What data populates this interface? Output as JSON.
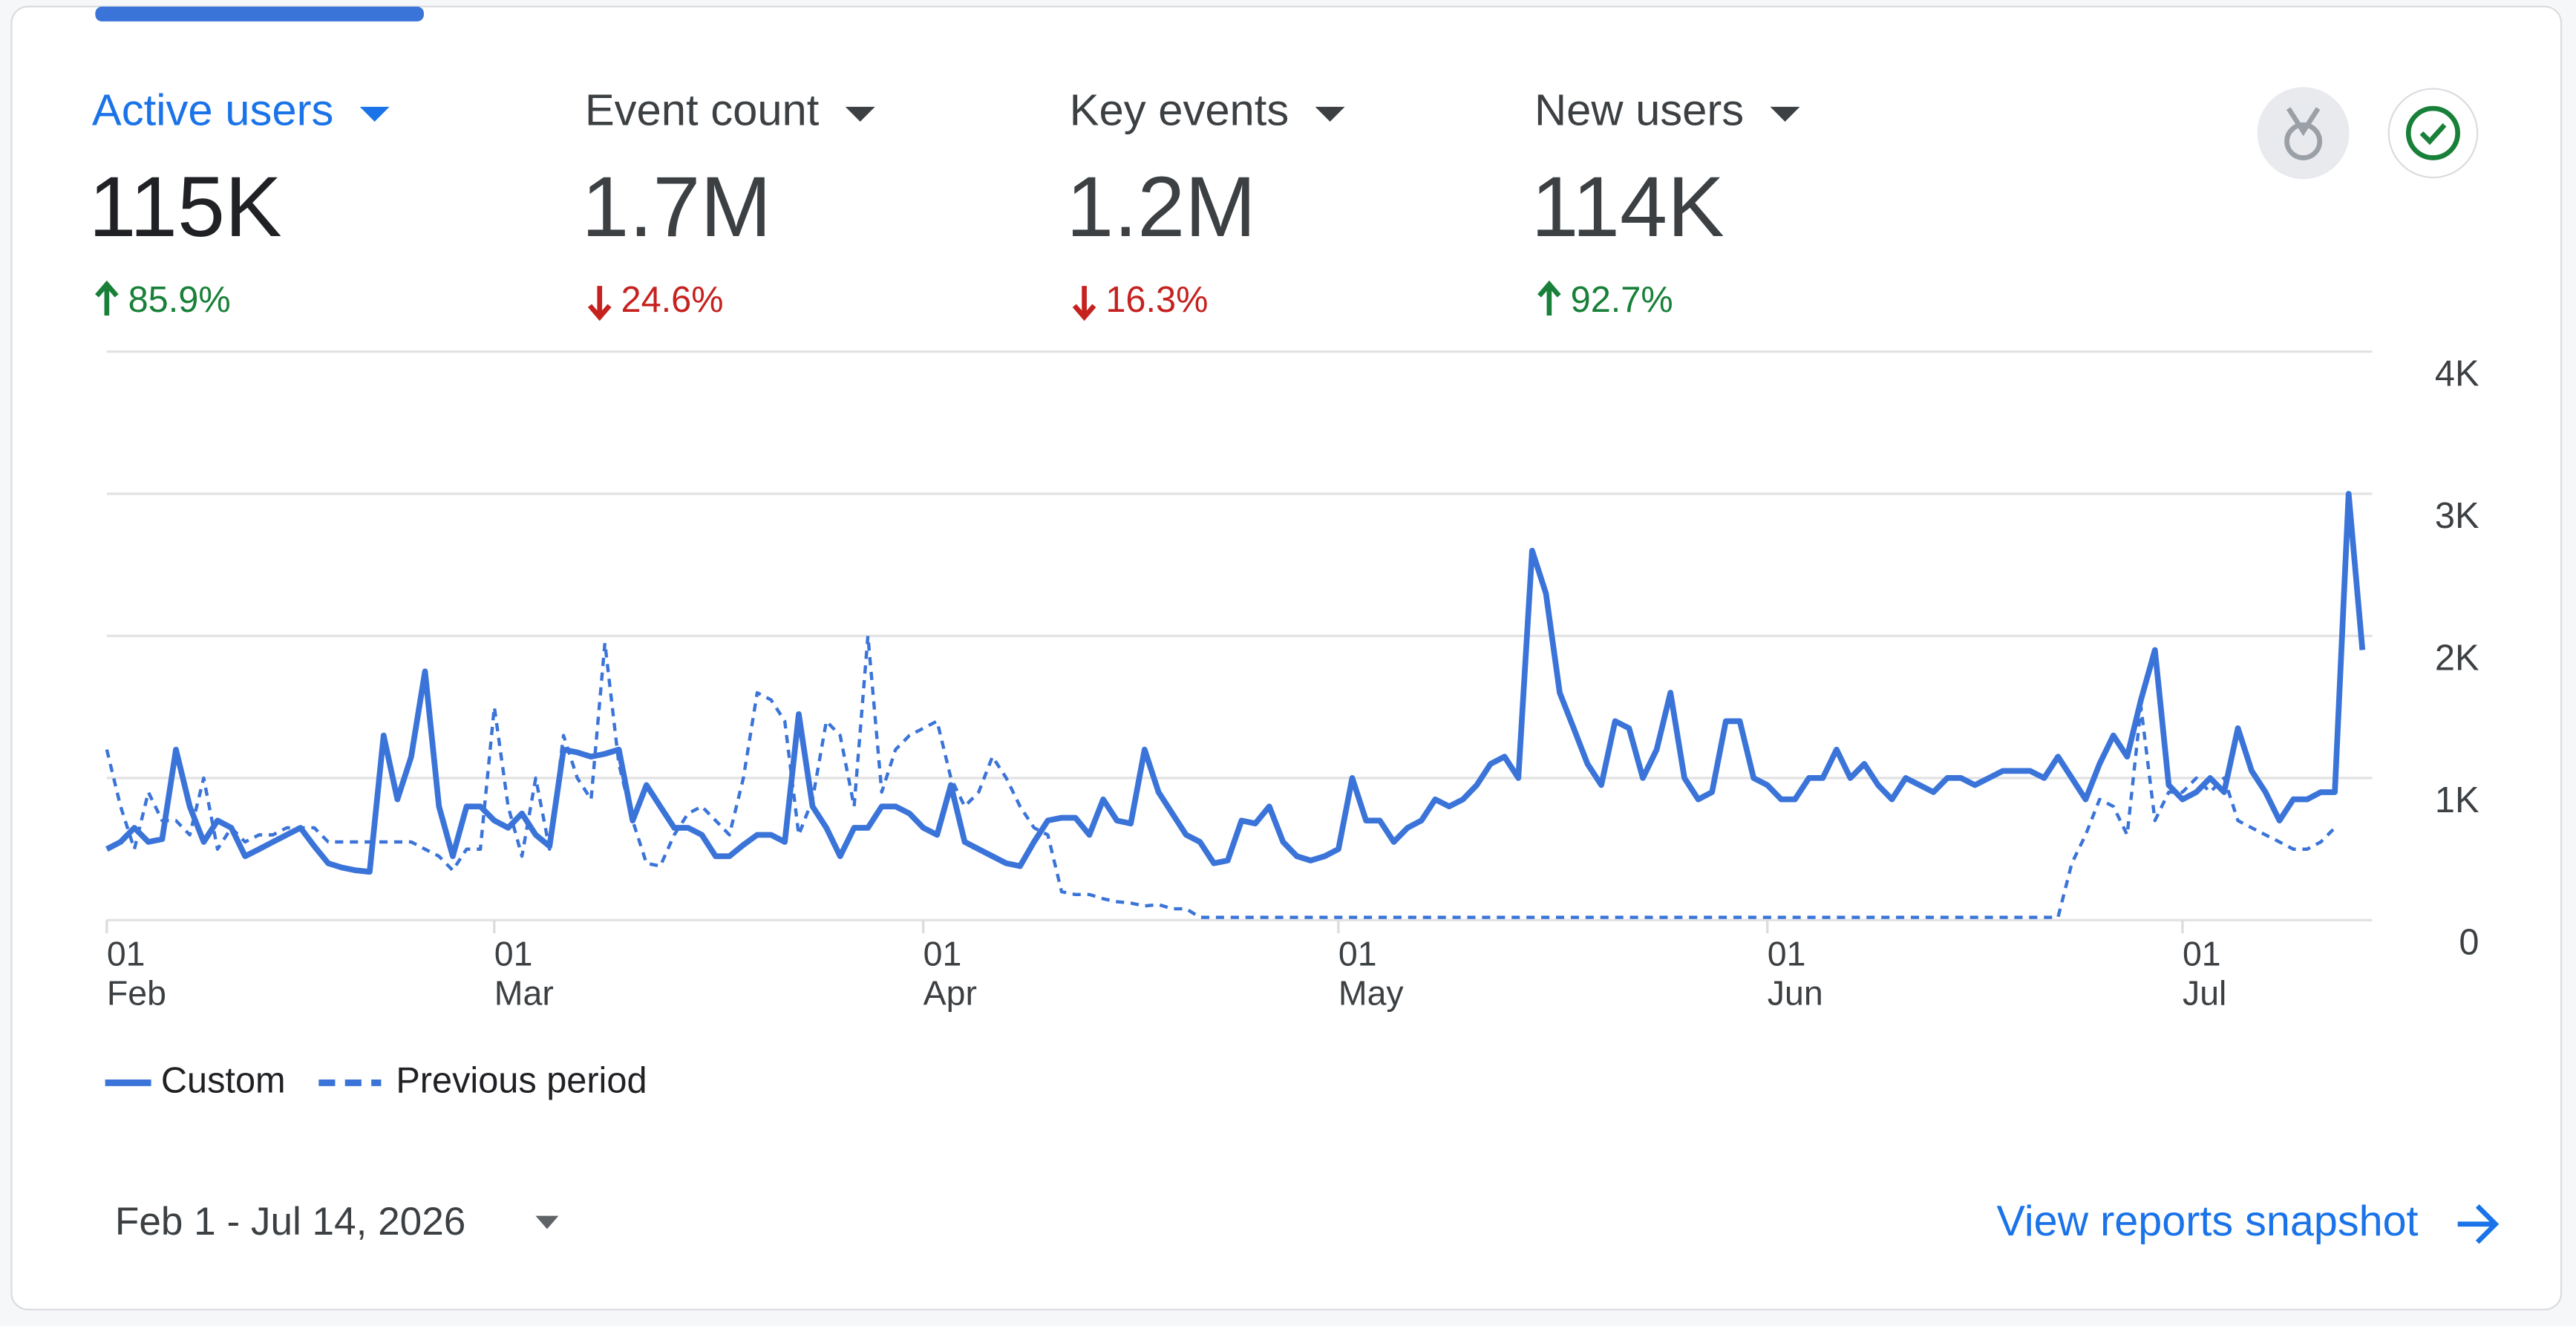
{
  "metrics": [
    {
      "name": "Active users",
      "value": "115K",
      "change": "85.9%",
      "direction": "up",
      "selected": true
    },
    {
      "name": "Event count",
      "value": "1.7M",
      "change": "24.6%",
      "direction": "down",
      "selected": false
    },
    {
      "name": "Key events",
      "value": "1.2M",
      "change": "16.3%",
      "direction": "down",
      "selected": false
    },
    {
      "name": "New users",
      "value": "114K",
      "change": "92.7%",
      "direction": "up",
      "selected": false
    }
  ],
  "chart_data": {
    "type": "line",
    "xlim": [
      0,
      163
    ],
    "xticks": [
      {
        "value": 0,
        "label": "01",
        "month": "Feb"
      },
      {
        "value": 28,
        "label": "01",
        "month": "Mar"
      },
      {
        "value": 59,
        "label": "01",
        "month": "Apr"
      },
      {
        "value": 89,
        "label": "01",
        "month": "May"
      },
      {
        "value": 120,
        "label": "01",
        "month": "Jun"
      },
      {
        "value": 150,
        "label": "01",
        "month": "Jul"
      }
    ],
    "ylim": [
      0,
      4000
    ],
    "yticks": [
      0,
      {
        "value": 1000,
        "label": "1K"
      },
      {
        "value": 2000,
        "label": "2K"
      },
      {
        "value": 3000,
        "label": "3K"
      },
      {
        "value": 4000,
        "label": "4K"
      }
    ],
    "grid": true,
    "series": [
      {
        "name": "Custom",
        "color": "#3b74d9",
        "dash": false,
        "values": [
          500,
          550,
          650,
          550,
          570,
          1200,
          800,
          550,
          700,
          650,
          450,
          500,
          550,
          600,
          650,
          520,
          400,
          370,
          350,
          340,
          1300,
          850,
          1150,
          1750,
          800,
          450,
          800,
          800,
          700,
          650,
          750,
          600,
          520,
          1200,
          1180,
          1150,
          1170,
          1200,
          700,
          950,
          800,
          650,
          650,
          600,
          450,
          450,
          530,
          600,
          600,
          550,
          1450,
          800,
          650,
          450,
          650,
          650,
          800,
          800,
          750,
          650,
          600,
          950,
          550,
          500,
          450,
          400,
          380,
          550,
          700,
          720,
          720,
          600,
          850,
          700,
          680,
          1200,
          900,
          750,
          600,
          550,
          400,
          420,
          700,
          680,
          800,
          550,
          450,
          420,
          450,
          500,
          1000,
          700,
          700,
          550,
          650,
          700,
          850,
          800,
          850,
          950,
          1100,
          1150,
          1000,
          2600,
          2300,
          1600,
          1350,
          1100,
          950,
          1400,
          1350,
          1000,
          1200,
          1600,
          1000,
          850,
          900,
          1400,
          1400,
          1000,
          950,
          850,
          850,
          1000,
          1000,
          1200,
          1000,
          1100,
          950,
          850,
          1000,
          950,
          900,
          1000,
          1000,
          950,
          1000,
          1050,
          1050,
          1050,
          1000,
          1150,
          1000,
          850,
          1100,
          1300,
          1150,
          1550,
          1900,
          950,
          850,
          900,
          1000,
          900,
          1350,
          1050,
          900,
          700,
          850,
          850,
          900,
          900,
          3000,
          1900
        ]
      },
      {
        "name": "Previous period",
        "color": "#3b74d9",
        "dash": true,
        "values": [
          1200,
          800,
          500,
          900,
          700,
          700,
          600,
          1000,
          500,
          650,
          550,
          600,
          600,
          650,
          650,
          650,
          550,
          550,
          550,
          550,
          550,
          550,
          550,
          500,
          450,
          350,
          500,
          500,
          1500,
          800,
          450,
          1000,
          500,
          1300,
          1000,
          850,
          1950,
          1100,
          700,
          400,
          380,
          600,
          750,
          800,
          700,
          600,
          1000,
          1600,
          1550,
          1400,
          600,
          850,
          1400,
          1300,
          800,
          2000,
          900,
          1200,
          1300,
          1350,
          1400,
          1000,
          800,
          900,
          1150,
          1000,
          800,
          650,
          600,
          200,
          180,
          180,
          150,
          130,
          120,
          100,
          110,
          80,
          80,
          20,
          20,
          20,
          20,
          20,
          20,
          20,
          20,
          20,
          20,
          20,
          20,
          20,
          20,
          20,
          20,
          20,
          20,
          20,
          20,
          20,
          20,
          20,
          20,
          20,
          20,
          20,
          20,
          20,
          20,
          20,
          20,
          20,
          20,
          20,
          20,
          20,
          20,
          20,
          20,
          20,
          20,
          20,
          20,
          20,
          20,
          20,
          20,
          20,
          20,
          20,
          20,
          20,
          20,
          20,
          20,
          20,
          20,
          20,
          20,
          20,
          20,
          20,
          400,
          600,
          850,
          800,
          600,
          1500,
          700,
          900,
          900,
          1000,
          900,
          1000,
          700,
          650,
          600,
          550,
          500,
          500,
          550,
          650
        ]
      }
    ]
  },
  "footer": {
    "date_range": "Feb 1 - Jul 14, 2026",
    "link": "View reports snapshot"
  }
}
